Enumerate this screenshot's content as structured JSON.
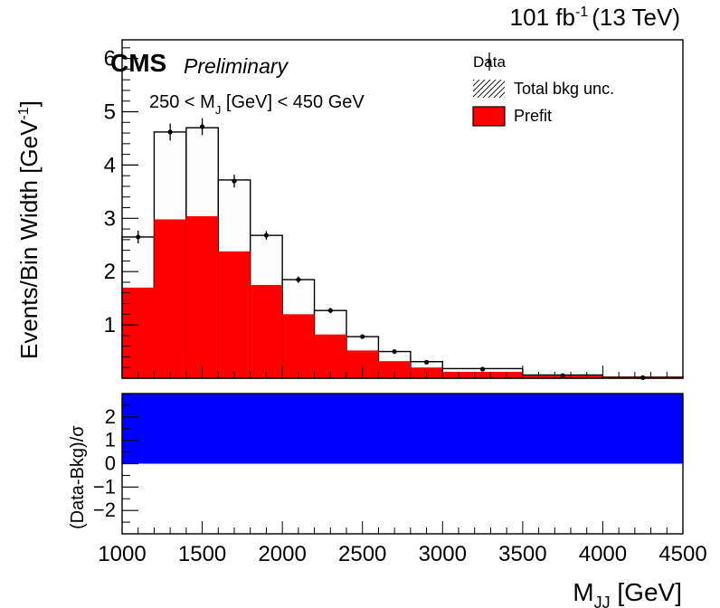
{
  "chart_data": [
    {
      "type": "bar",
      "panel": "top",
      "lumi": "101 fb",
      "lumi_exp": "-1",
      "energy": "(13 TeV)",
      "experiment": "CMS",
      "status": "Preliminary",
      "selection": "250 < M",
      "selection_sub": "J",
      "selection_rest": " [GeV] < 450 GeV",
      "ylabel": "Events/Bin Width [GeV",
      "ylabel_exp": "-1",
      "ylabel_close": "]",
      "ylim": [
        0,
        6.35
      ],
      "yticks": [
        "1",
        "2",
        "3",
        "4",
        "5",
        "6"
      ],
      "bin_edges": [
        1000,
        1200,
        1400,
        1600,
        1800,
        2000,
        2200,
        2400,
        2600,
        2800,
        3000,
        3500,
        4000,
        4500
      ],
      "series": [
        {
          "name": "Prefit",
          "color": "#ff0000",
          "values": [
            1.7,
            2.98,
            3.04,
            2.38,
            1.75,
            1.2,
            0.82,
            0.52,
            0.32,
            0.2,
            0.12,
            0.05,
            0.02
          ]
        }
      ],
      "total_bkg": [
        2.65,
        4.62,
        4.7,
        3.72,
        2.68,
        1.85,
        1.27,
        0.78,
        0.5,
        0.31,
        0.18,
        0.06,
        0.02
      ],
      "data_points": [
        {
          "x": 1100,
          "y": 2.65,
          "err": 0.12
        },
        {
          "x": 1300,
          "y": 4.62,
          "err": 0.16
        },
        {
          "x": 1500,
          "y": 4.72,
          "err": 0.16
        },
        {
          "x": 1700,
          "y": 3.7,
          "err": 0.12
        },
        {
          "x": 1900,
          "y": 2.68,
          "err": 0.08
        },
        {
          "x": 2100,
          "y": 1.85,
          "err": 0.06
        },
        {
          "x": 2300,
          "y": 1.27,
          "err": 0.05
        },
        {
          "x": 2500,
          "y": 0.78,
          "err": 0.04
        },
        {
          "x": 2700,
          "y": 0.5,
          "err": 0.03
        },
        {
          "x": 2900,
          "y": 0.3,
          "err": 0.02
        },
        {
          "x": 3250,
          "y": 0.17,
          "err": 0.01
        },
        {
          "x": 3750,
          "y": 0.05,
          "err": 0.005
        },
        {
          "x": 4250,
          "y": 0.01,
          "err": 0.002
        }
      ],
      "legend": [
        {
          "label": "Data",
          "kind": "data"
        },
        {
          "label": "Total bkg unc.",
          "kind": "hatch"
        },
        {
          "label": "Prefit",
          "kind": "fill"
        }
      ],
      "legend_position": "top-right"
    },
    {
      "type": "area",
      "panel": "bottom",
      "ylabel": "(Data-Bkg)/σ",
      "xlabel": "M",
      "xlabel_sub": "JJ",
      "xlabel_rest": " [GeV]",
      "xlim": [
        1000,
        4500
      ],
      "ylim": [
        -3,
        3
      ],
      "xticks": [
        "1000",
        "1500",
        "2000",
        "2500",
        "3000",
        "3500",
        "4000",
        "4500"
      ],
      "yticks": [
        "−2",
        "−1",
        "0",
        "1",
        "2"
      ],
      "band": {
        "color": "#0000ff",
        "from": 0,
        "to": 3
      }
    }
  ]
}
